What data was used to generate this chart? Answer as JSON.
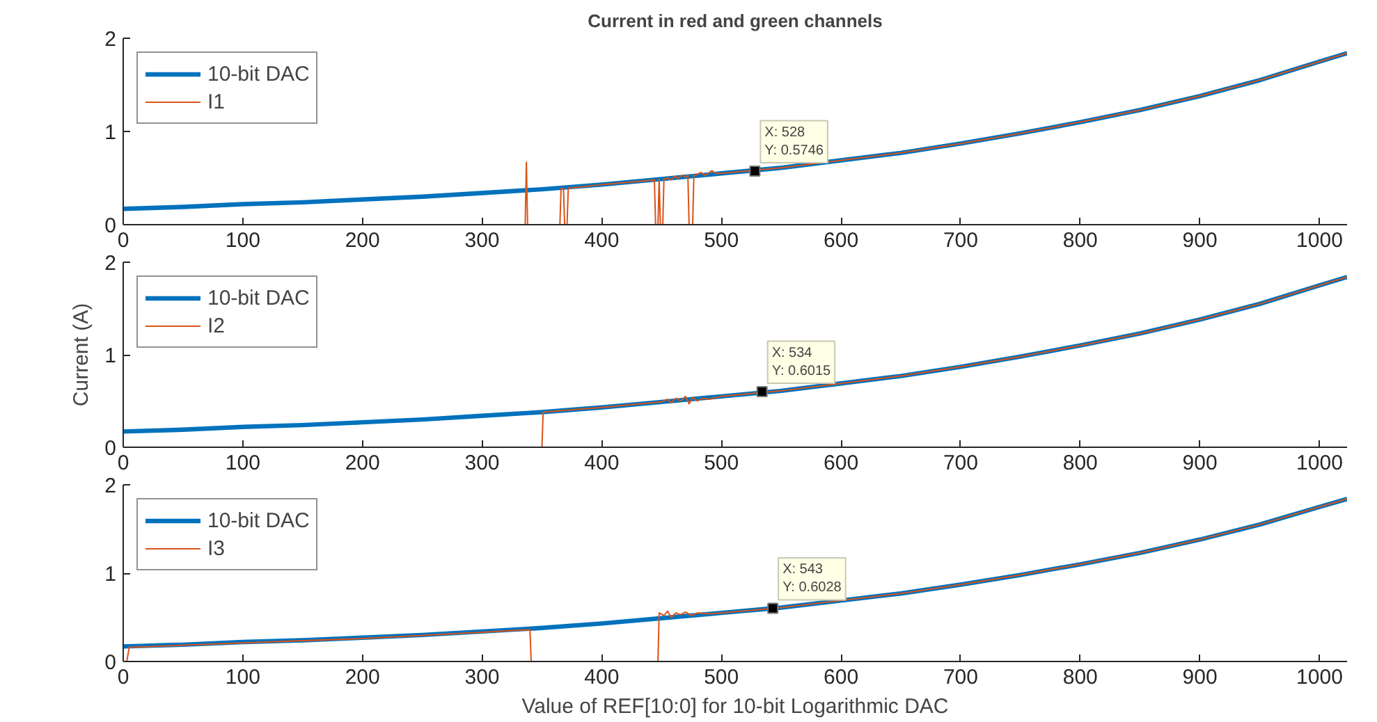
{
  "chart_data": [
    {
      "type": "line",
      "title": "Current in red and green channels",
      "xlim": [
        0,
        1023
      ],
      "xticks": [
        0,
        100,
        200,
        300,
        400,
        500,
        600,
        700,
        800,
        900,
        1000
      ],
      "ylim": [
        0,
        2
      ],
      "yticks": [
        0,
        1,
        2
      ],
      "grid": false,
      "legend": "top left",
      "annotations": [
        {
          "text": "X: 528\nY: 0.5746",
          "x": 528,
          "y": 0.5746
        }
      ],
      "series": [
        {
          "name": "10-bit DAC",
          "color": "#0072bd",
          "x": [
            0,
            50,
            100,
            150,
            200,
            250,
            300,
            350,
            400,
            450,
            500,
            550,
            600,
            650,
            700,
            750,
            800,
            850,
            900,
            950,
            1000,
            1023
          ],
          "values": [
            0.17,
            0.19,
            0.22,
            0.24,
            0.27,
            0.3,
            0.34,
            0.38,
            0.43,
            0.49,
            0.55,
            0.61,
            0.69,
            0.77,
            0.87,
            0.98,
            1.1,
            1.23,
            1.38,
            1.55,
            1.75,
            1.84
          ]
        },
        {
          "name": "I1",
          "color": "#d95319",
          "x": [
            0,
            336,
            337,
            338,
            365,
            366,
            368,
            369,
            371,
            372,
            400,
            444,
            445,
            447,
            448,
            449,
            451,
            452,
            455,
            458,
            461,
            464,
            467,
            470,
            472,
            473,
            476,
            477,
            480,
            483,
            486,
            489,
            492,
            495,
            500,
            550,
            600,
            650,
            700,
            750,
            800,
            850,
            900,
            950,
            1000,
            1023
          ],
          "values": [
            0,
            0,
            0.67,
            0,
            0,
            0.39,
            0.39,
            0,
            0,
            0.39,
            0.43,
            0.48,
            0,
            0,
            0.49,
            0,
            0,
            0.49,
            0.5,
            0.48,
            0.52,
            0.5,
            0.53,
            0.51,
            0.53,
            0,
            0,
            0.53,
            0.54,
            0.56,
            0.53,
            0.55,
            0.58,
            0.55,
            0.55,
            0.61,
            0.69,
            0.77,
            0.87,
            0.98,
            1.1,
            1.23,
            1.38,
            1.55,
            1.75,
            1.84
          ]
        }
      ]
    },
    {
      "type": "line",
      "ylabel": "Current (A)",
      "xlim": [
        0,
        1023
      ],
      "xticks": [
        0,
        100,
        200,
        300,
        400,
        500,
        600,
        700,
        800,
        900,
        1000
      ],
      "ylim": [
        0,
        2
      ],
      "yticks": [
        0,
        1,
        2
      ],
      "grid": false,
      "legend": "top left",
      "annotations": [
        {
          "text": "X: 534\nY: 0.6015",
          "x": 534,
          "y": 0.6015
        }
      ],
      "series": [
        {
          "name": "10-bit DAC",
          "color": "#0072bd",
          "x": [
            0,
            50,
            100,
            150,
            200,
            250,
            300,
            350,
            400,
            450,
            500,
            550,
            600,
            650,
            700,
            750,
            800,
            850,
            900,
            950,
            1000,
            1023
          ],
          "values": [
            0.17,
            0.19,
            0.22,
            0.24,
            0.27,
            0.3,
            0.34,
            0.38,
            0.43,
            0.49,
            0.55,
            0.61,
            0.69,
            0.77,
            0.87,
            0.98,
            1.1,
            1.23,
            1.38,
            1.55,
            1.75,
            1.84
          ]
        },
        {
          "name": "I2",
          "color": "#d95319",
          "x": [
            0,
            350,
            351,
            400,
            450,
            455,
            458,
            462,
            466,
            470,
            473,
            476,
            480,
            484,
            490,
            500,
            550,
            600,
            650,
            700,
            750,
            800,
            850,
            900,
            950,
            1000,
            1023
          ],
          "values": [
            0,
            0,
            0.38,
            0.43,
            0.49,
            0.52,
            0.48,
            0.53,
            0.5,
            0.55,
            0.47,
            0.54,
            0.5,
            0.53,
            0.52,
            0.55,
            0.61,
            0.69,
            0.77,
            0.87,
            0.98,
            1.1,
            1.23,
            1.38,
            1.55,
            1.75,
            1.84
          ]
        }
      ]
    },
    {
      "type": "line",
      "xlabel": "Value of REF[10:0] for 10-bit Logarithmic DAC",
      "xlim": [
        0,
        1023
      ],
      "xticks": [
        0,
        100,
        200,
        300,
        400,
        500,
        600,
        700,
        800,
        900,
        1000
      ],
      "ylim": [
        0,
        2
      ],
      "yticks": [
        0,
        1,
        2
      ],
      "grid": false,
      "legend": "top left",
      "annotations": [
        {
          "text": "X: 543\nY: 0.6028",
          "x": 543,
          "y": 0.6028
        }
      ],
      "series": [
        {
          "name": "10-bit DAC",
          "color": "#0072bd",
          "x": [
            0,
            50,
            100,
            150,
            200,
            250,
            300,
            350,
            400,
            450,
            500,
            550,
            600,
            650,
            700,
            750,
            800,
            850,
            900,
            950,
            1000,
            1023
          ],
          "values": [
            0.17,
            0.19,
            0.22,
            0.24,
            0.27,
            0.3,
            0.34,
            0.38,
            0.43,
            0.49,
            0.55,
            0.61,
            0.69,
            0.77,
            0.87,
            0.98,
            1.1,
            1.23,
            1.38,
            1.55,
            1.75,
            1.84
          ]
        },
        {
          "name": "I3",
          "color": "#d95319",
          "x": [
            0,
            3,
            5,
            100,
            200,
            300,
            340,
            341,
            447,
            448,
            452,
            455,
            458,
            462,
            466,
            470,
            475,
            480,
            490,
            500,
            550,
            600,
            650,
            700,
            750,
            800,
            850,
            900,
            950,
            1000,
            1023
          ],
          "values": [
            0,
            0,
            0.16,
            0.21,
            0.26,
            0.33,
            0.36,
            0,
            0,
            0.55,
            0.52,
            0.57,
            0.5,
            0.55,
            0.53,
            0.56,
            0.52,
            0.55,
            0.54,
            0.55,
            0.61,
            0.69,
            0.77,
            0.87,
            0.98,
            1.1,
            1.23,
            1.38,
            1.55,
            1.75,
            1.84
          ]
        }
      ]
    }
  ]
}
